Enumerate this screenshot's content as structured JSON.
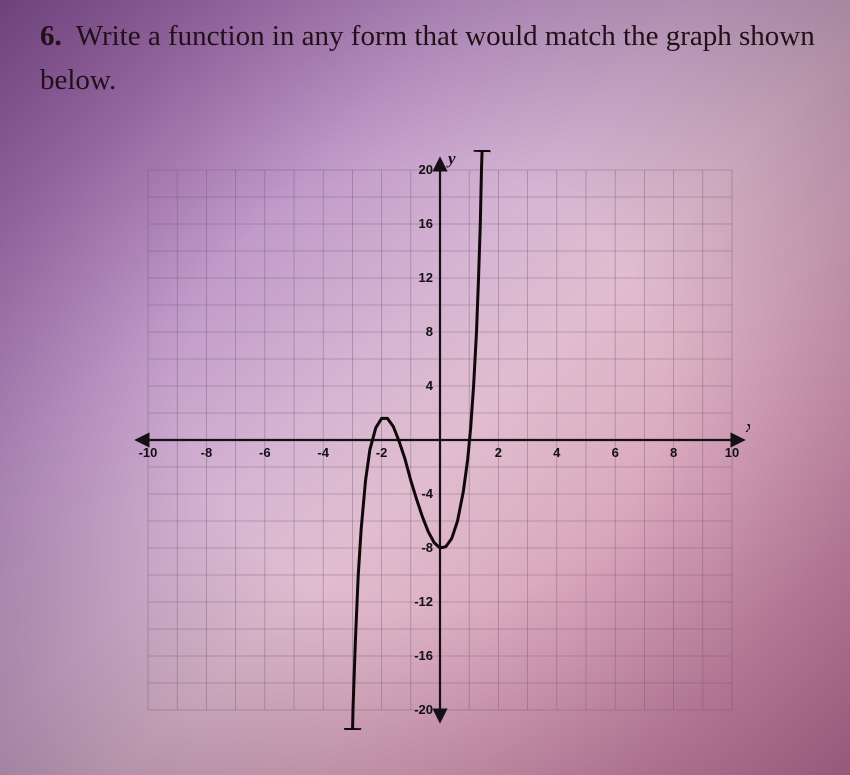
{
  "question": {
    "number": "6.",
    "text": "Write a function in any form that would match the graph shown below."
  },
  "chart": {
    "type": "line",
    "background_color": "transparent",
    "grid_color": "#6a556b",
    "axis_color": "#151015",
    "curve_color": "#100808",
    "curve_width": 3,
    "xlabel": "x",
    "ylabel": "y",
    "xlim": [
      -10,
      10
    ],
    "ylim": [
      -20,
      20
    ],
    "xtick_step": 2,
    "ytick_step": 4,
    "xticks": [
      -10,
      -8,
      -6,
      -4,
      -2,
      2,
      4,
      6,
      8,
      10
    ],
    "yticks": [
      20,
      16,
      12,
      8,
      4,
      -4,
      -8,
      -12,
      -16,
      -20
    ],
    "tick_fontsize": 13,
    "grid_step_x": 1,
    "grid_step_y": 2,
    "curve_points": [
      [
        -3.0,
        -22.0
      ],
      [
        -2.98,
        -20.0
      ],
      [
        -2.9,
        -15.0
      ],
      [
        -2.8,
        -10.0
      ],
      [
        -2.7,
        -6.6
      ],
      [
        -2.55,
        -3.0
      ],
      [
        -2.4,
        -0.7
      ],
      [
        -2.2,
        0.9
      ],
      [
        -2.0,
        1.6
      ],
      [
        -1.8,
        1.6
      ],
      [
        -1.6,
        1.0
      ],
      [
        -1.4,
        -0.1
      ],
      [
        -1.2,
        -1.4
      ],
      [
        -1.0,
        -3.0
      ],
      [
        -0.8,
        -4.4
      ],
      [
        -0.6,
        -5.7
      ],
      [
        -0.4,
        -6.8
      ],
      [
        -0.2,
        -7.6
      ],
      [
        0.0,
        -8.0
      ],
      [
        0.2,
        -7.9
      ],
      [
        0.4,
        -7.3
      ],
      [
        0.6,
        -6.0
      ],
      [
        0.8,
        -3.8
      ],
      [
        0.95,
        -1.4
      ],
      [
        1.05,
        0.9
      ],
      [
        1.15,
        4.0
      ],
      [
        1.25,
        8.0
      ],
      [
        1.32,
        12.0
      ],
      [
        1.38,
        16.0
      ],
      [
        1.42,
        20.0
      ],
      [
        1.45,
        22.0
      ]
    ]
  }
}
